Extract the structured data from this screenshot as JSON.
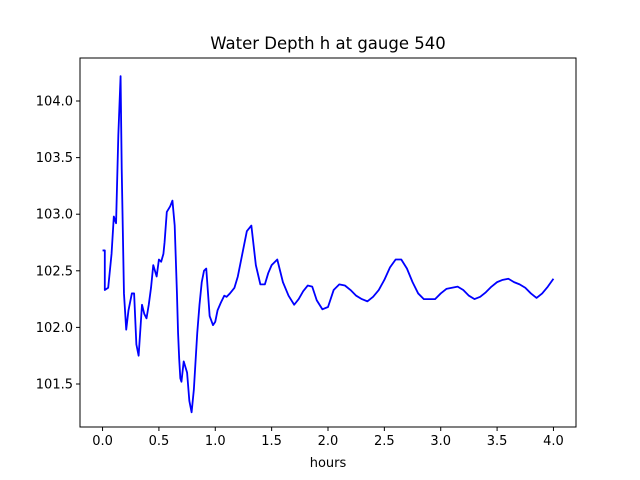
{
  "chart_data": {
    "type": "line",
    "title": "Water Depth h at gauge 540",
    "xlabel": "hours",
    "ylabel": "",
    "xlim": [
      -0.2,
      4.2
    ],
    "ylim": [
      101.12,
      104.38
    ],
    "xticks": [
      0.0,
      0.5,
      1.0,
      1.5,
      2.0,
      2.5,
      3.0,
      3.5,
      4.0
    ],
    "xtick_labels": [
      "0.0",
      "0.5",
      "1.0",
      "1.5",
      "2.0",
      "2.5",
      "3.0",
      "3.5",
      "4.0"
    ],
    "yticks": [
      101.5,
      102.0,
      102.5,
      103.0,
      103.5,
      104.0
    ],
    "ytick_labels": [
      "101.5",
      "102.0",
      "102.5",
      "103.0",
      "103.5",
      "104.0"
    ],
    "grid": false,
    "series": [
      {
        "color": "#0000ff",
        "x": [
          0.0,
          0.02,
          0.02,
          0.05,
          0.08,
          0.1,
          0.12,
          0.14,
          0.16,
          0.17,
          0.19,
          0.21,
          0.23,
          0.26,
          0.28,
          0.3,
          0.32,
          0.35,
          0.37,
          0.39,
          0.41,
          0.43,
          0.45,
          0.48,
          0.5,
          0.52,
          0.54,
          0.55,
          0.57,
          0.6,
          0.62,
          0.64,
          0.66,
          0.67,
          0.68,
          0.69,
          0.7,
          0.72,
          0.75,
          0.77,
          0.79,
          0.81,
          0.84,
          0.86,
          0.88,
          0.9,
          0.92,
          0.95,
          0.98,
          1.0,
          1.02,
          1.05,
          1.08,
          1.1,
          1.13,
          1.17,
          1.2,
          1.24,
          1.28,
          1.32,
          1.36,
          1.4,
          1.44,
          1.47,
          1.5,
          1.55,
          1.6,
          1.65,
          1.7,
          1.74,
          1.78,
          1.82,
          1.86,
          1.9,
          1.95,
          2.0,
          2.05,
          2.1,
          2.15,
          2.2,
          2.25,
          2.3,
          2.35,
          2.4,
          2.45,
          2.5,
          2.55,
          2.6,
          2.65,
          2.7,
          2.75,
          2.8,
          2.85,
          2.9,
          2.95,
          3.0,
          3.05,
          3.1,
          3.15,
          3.2,
          3.25,
          3.3,
          3.35,
          3.4,
          3.45,
          3.5,
          3.55,
          3.6,
          3.65,
          3.7,
          3.75,
          3.8,
          3.85,
          3.9,
          3.95,
          4.0
        ],
        "y": [
          102.68,
          102.68,
          102.33,
          102.35,
          102.65,
          102.98,
          102.92,
          103.7,
          104.22,
          103.4,
          102.3,
          101.98,
          102.15,
          102.3,
          102.3,
          101.85,
          101.75,
          102.2,
          102.12,
          102.08,
          102.2,
          102.35,
          102.55,
          102.45,
          102.6,
          102.58,
          102.65,
          102.75,
          103.02,
          103.07,
          103.12,
          102.9,
          102.3,
          101.95,
          101.72,
          101.55,
          101.52,
          101.7,
          101.6,
          101.35,
          101.25,
          101.45,
          101.95,
          102.2,
          102.4,
          102.5,
          102.52,
          102.1,
          102.02,
          102.05,
          102.15,
          102.22,
          102.28,
          102.27,
          102.3,
          102.35,
          102.45,
          102.65,
          102.85,
          102.9,
          102.55,
          102.38,
          102.38,
          102.48,
          102.55,
          102.6,
          102.4,
          102.28,
          102.2,
          102.25,
          102.32,
          102.37,
          102.36,
          102.24,
          102.16,
          102.18,
          102.33,
          102.38,
          102.37,
          102.33,
          102.28,
          102.25,
          102.23,
          102.27,
          102.33,
          102.42,
          102.53,
          102.6,
          102.6,
          102.52,
          102.4,
          102.3,
          102.25,
          102.25,
          102.25,
          102.3,
          102.34,
          102.35,
          102.36,
          102.33,
          102.28,
          102.25,
          102.27,
          102.31,
          102.36,
          102.4,
          102.42,
          102.43,
          102.4,
          102.38,
          102.35,
          102.3,
          102.26,
          102.3,
          102.36,
          102.43
        ]
      }
    ]
  }
}
